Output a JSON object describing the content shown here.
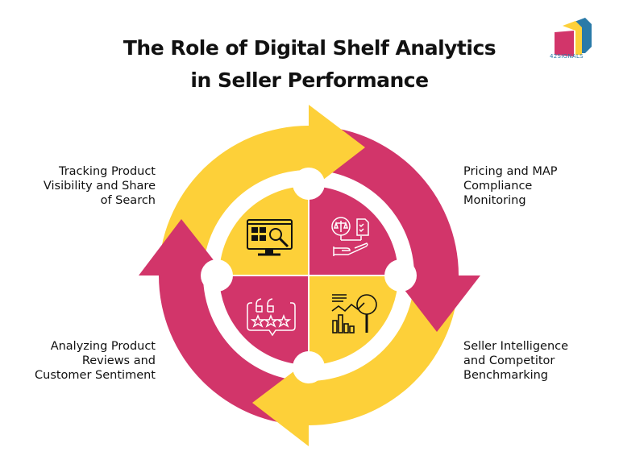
{
  "title": {
    "line1": "The Role of Digital Shelf Analytics",
    "line2": "in Seller Performance"
  },
  "logo": {
    "text": "42SIGNALS"
  },
  "colors": {
    "magenta": "#D2356A",
    "yellow": "#FDD039"
  },
  "steps": [
    {
      "label": "Tracking Product\nVisibility and Share\nof Search",
      "icon": "monitor-search-icon"
    },
    {
      "label": "Pricing and MAP\nCompliance\nMonitoring",
      "icon": "scale-checklist-hand-icon"
    },
    {
      "label": "Seller Intelligence\nand Competitor\nBenchmarking",
      "icon": "chart-magnifier-icon"
    },
    {
      "label": "Analyzing Product\nReviews and\nCustomer Sentiment",
      "icon": "review-stars-icon"
    }
  ]
}
